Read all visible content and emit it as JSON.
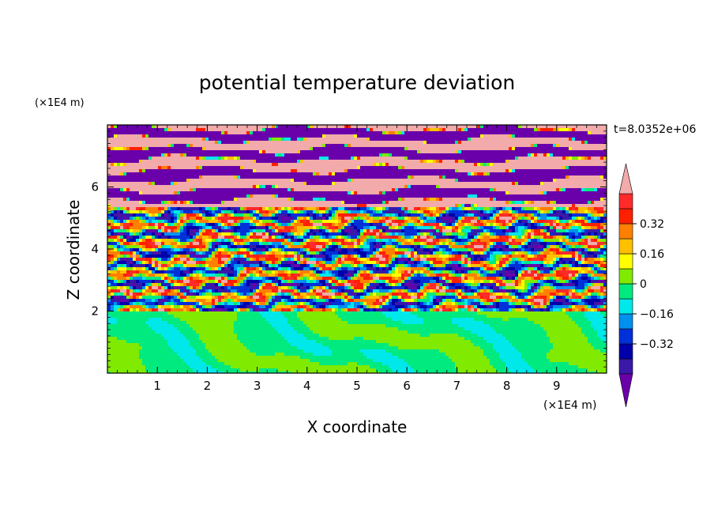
{
  "chart_data": {
    "type": "heatmap",
    "title": "potential temperature deviation",
    "xlabel": "X coordinate",
    "ylabel": "Z coordinate",
    "x_unit": "(×1E4 m)",
    "y_unit": "(×1E4 m)",
    "time_label": "t=8.0352e+06",
    "xlim": [
      0,
      10
    ],
    "ylim": [
      0,
      8
    ],
    "x_ticks": [
      1,
      2,
      3,
      4,
      5,
      6,
      7,
      8,
      9
    ],
    "y_ticks": [
      2,
      4,
      6
    ],
    "colorbar": {
      "levels": [
        -0.48,
        -0.4,
        -0.32,
        -0.24,
        -0.16,
        -0.08,
        0,
        0.08,
        0.16,
        0.24,
        0.32,
        0.4,
        0.48
      ],
      "tick_labels": [
        "0.32",
        "0.16",
        "0",
        "−0.16",
        "−0.32"
      ],
      "tick_values": [
        0.32,
        0.16,
        0,
        -0.16,
        -0.32
      ],
      "colors": [
        "#6a00aa",
        "#3a18a8",
        "#0000aa",
        "#0030d8",
        "#0090ee",
        "#00e8ea",
        "#00ea80",
        "#80ea00",
        "#ffff00",
        "#ffc000",
        "#ff8000",
        "#ff2000",
        "#ff2a2a",
        "#f2aaaa"
      ],
      "extend": "both"
    },
    "regions": [
      {
        "z_range": [
          5.3,
          8.0
        ],
        "description": "layered bands alternating pink and purple"
      },
      {
        "z_range": [
          2.0,
          5.3
        ],
        "description": "turbulent mixed layer spanning full color range"
      },
      {
        "z_range": [
          0.0,
          2.0
        ],
        "description": "green / light-green / teal swirls"
      }
    ]
  }
}
